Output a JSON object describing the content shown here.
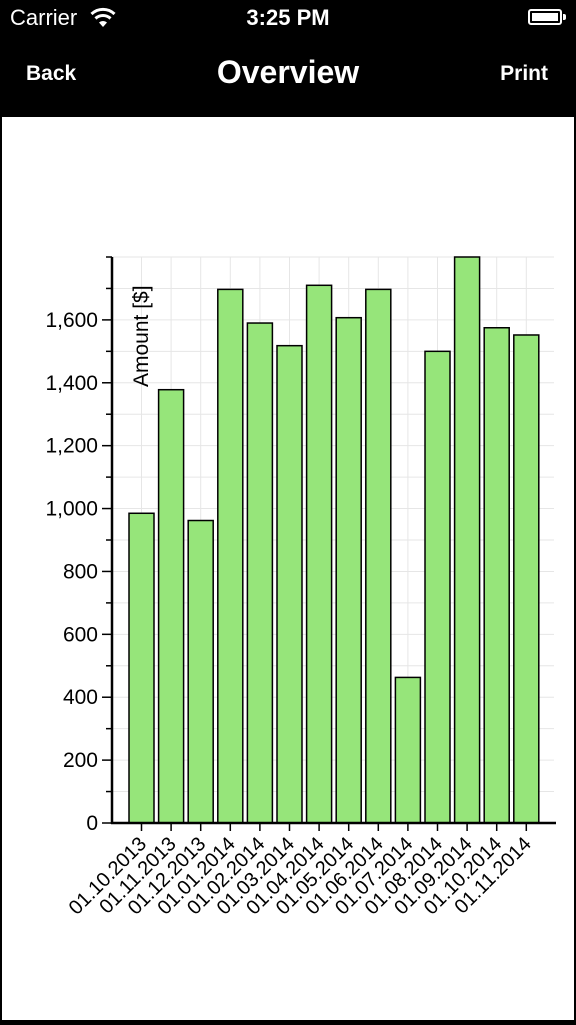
{
  "status_bar": {
    "carrier": "Carrier",
    "time": "3:25 PM"
  },
  "nav": {
    "back_label": "Back",
    "title": "Overview",
    "print_label": "Print"
  },
  "chart_data": {
    "type": "bar",
    "categories": [
      "01.10.2013",
      "01.11.2013",
      "01.12.2013",
      "01.01.2014",
      "01.02.2014",
      "01.03.2014",
      "01.04.2014",
      "01.05.2014",
      "01.06.2014",
      "01.07.2014",
      "01.08.2014",
      "01.09.2014",
      "01.10.2014",
      "01.11.2014"
    ],
    "values": [
      985,
      1378,
      962,
      1697,
      1590,
      1518,
      1710,
      1607,
      1697,
      463,
      1500,
      1800,
      1575,
      1552
    ],
    "ylabel": "Amount [$]",
    "xlabel": "",
    "ylim": [
      0,
      1800
    ],
    "yticks": [
      0,
      200,
      400,
      600,
      800,
      1000,
      1200,
      1400,
      1600
    ],
    "ytick_labels": [
      "0",
      "200",
      "400",
      "600",
      "800",
      "1,000",
      "1,200",
      "1,400",
      "1,600"
    ],
    "grid": true,
    "bar_color": "#96e57a"
  }
}
